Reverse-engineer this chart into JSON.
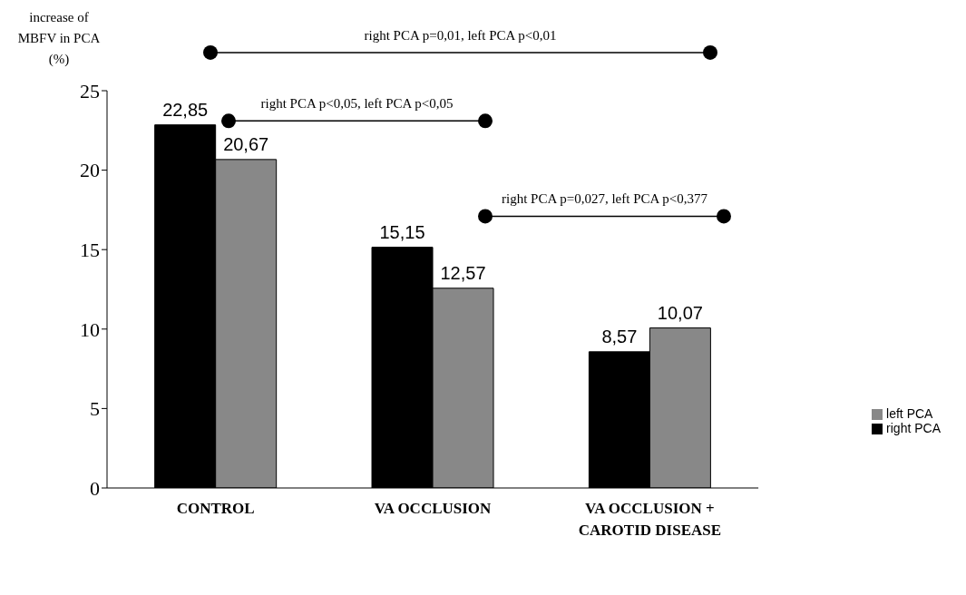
{
  "chart_data": {
    "type": "bar",
    "ylabel": "increase of MBFV in PCA (%)",
    "categories": [
      "CONTROL",
      "VA OCCLUSION",
      "VA OCCLUSION + CAROTID DISEASE"
    ],
    "series": [
      {
        "name": "right PCA",
        "color": "#000000",
        "values": [
          22.85,
          15.15,
          8.57
        ],
        "value_labels": [
          "22,85",
          "15,15",
          "8,57"
        ]
      },
      {
        "name": "left PCA",
        "color": "#888888",
        "values": [
          20.67,
          12.57,
          10.07
        ],
        "value_labels": [
          "20,67",
          "12,57",
          "10,07"
        ]
      }
    ],
    "ylim": [
      0,
      25
    ],
    "yticks": [
      0,
      5,
      10,
      15,
      20,
      25
    ],
    "grid": false,
    "legend": "right",
    "annotations": [
      "right PCA p=0,01, left PCA p<0,01",
      "right PCA p<0,05, left PCA p<0,05",
      "right PCA p=0,027, left PCA p<0,377"
    ]
  }
}
